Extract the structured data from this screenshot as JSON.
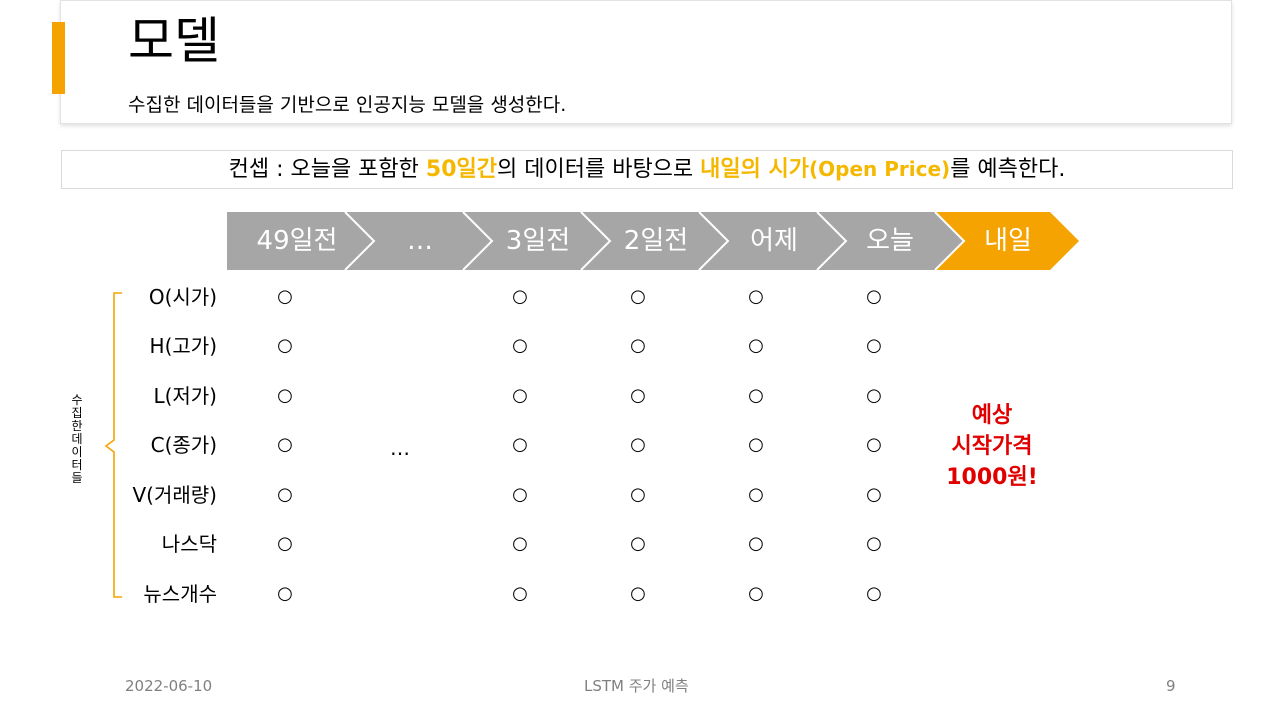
{
  "slide": {
    "title": "모델",
    "subtitle": "수집한 데이터들을 기반으로 인공지능 모델을 생성한다.",
    "accent_color": "#f5a300"
  },
  "concept": {
    "prefix": "컨셉 : 오늘을 포함한 ",
    "highlight1": "50일간",
    "middle": "의 데이터를 바탕으로 ",
    "highlight2": "내일의 시가",
    "highlight3": "(Open Price)",
    "suffix": "를 예측한다.",
    "highlight_color": "#f5b800"
  },
  "timeline": {
    "steps": [
      "49일전",
      "…",
      "3일전",
      "2일전",
      "어제",
      "오늘",
      "내일"
    ],
    "step_color": "#a6a6a6",
    "target_color": "#f5a300"
  },
  "data_rows": {
    "labels": [
      "O(시가)",
      "H(고가)",
      "L(저가)",
      "C(종가)",
      "V(거래량)",
      "나스닥",
      "뉴스개수"
    ],
    "marker": "○",
    "gap_marker": "…"
  },
  "collected_label": "수집한 데이터들",
  "prediction": {
    "line1": "예상",
    "line2": "시작가격",
    "line3": "1000원!",
    "color": "#e00000"
  },
  "footer": {
    "date": "2022-06-10",
    "center": "LSTM 주가 예측",
    "page": "9"
  }
}
